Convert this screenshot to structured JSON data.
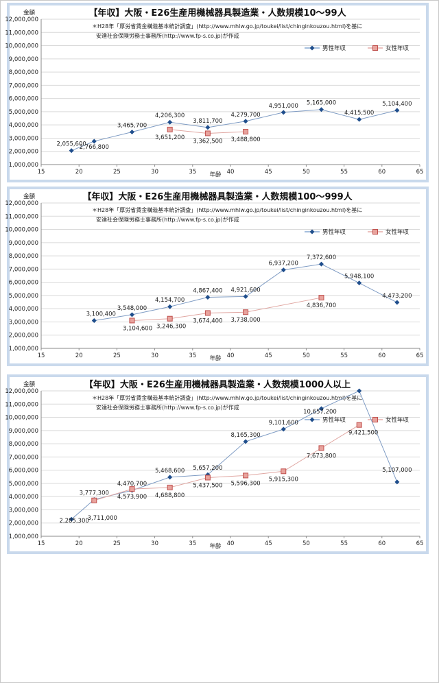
{
  "chart_data": [
    {
      "type": "line",
      "title": "【年収】大阪・E26生産用機械器具製造業・人数規模10～99人",
      "note_line1": "＊H28年「厚労省賃金構造基本統計調査」(http://www.mhlw.go.jp/toukei/list/chinginkouzou.html)を基に",
      "note_line2": "安達社会保険労務士事務所(http://www.fp-s.co.jp)が作成",
      "ylabel": "金額",
      "xlabel": "年齢",
      "xlim": [
        15,
        65
      ],
      "ylim": [
        1000000,
        12000000
      ],
      "x_ticks": [
        "15",
        "20",
        "25",
        "30",
        "35",
        "40",
        "45",
        "50",
        "55",
        "60",
        "65"
      ],
      "y_ticks": [
        "1,000,000",
        "2,000,000",
        "3,000,000",
        "4,000,000",
        "5,000,000",
        "6,000,000",
        "7,000,000",
        "8,000,000",
        "9,000,000",
        "10,000,000",
        "11,000,000",
        "12,000,000"
      ],
      "legend_position": "top-right",
      "grid": true,
      "series": [
        {
          "name": "男性年収",
          "color": "#4a7ebb",
          "marker": "diamond",
          "x": [
            19,
            22,
            27,
            32,
            37,
            42,
            47,
            52,
            57,
            62
          ],
          "y": [
            2055600,
            2766800,
            3465700,
            4206300,
            3811700,
            4279700,
            4951000,
            5165000,
            4415500,
            5104400
          ],
          "labels": [
            "2,055,600",
            "2,766,800",
            "3,465,700",
            "4,206,300",
            "3,811,700",
            "4,279,700",
            "4,951,000",
            "5,165,000",
            "4,415,500",
            "5,104,400"
          ]
        },
        {
          "name": "女性年収",
          "color": "#d9837c",
          "marker": "square",
          "x": [
            32,
            37,
            42
          ],
          "y": [
            3651200,
            3362500,
            3488800
          ],
          "labels": [
            "3,651,200",
            "3,362,500",
            "3,488,800"
          ]
        }
      ]
    },
    {
      "type": "line",
      "title": "【年収】大阪・E26生産用機械器具製造業・人数規模100～999人",
      "note_line1": "＊H28年「厚労省賃金構造基本統計調査」(http://www.mhlw.go.jp/toukei/list/chinginkouzou.html)を基に",
      "note_line2": "安達社会保険労務士事務所(http://www.fp-s.co.jp)が作成",
      "ylabel": "金額",
      "xlabel": "年齢",
      "xlim": [
        15,
        65
      ],
      "ylim": [
        1000000,
        12000000
      ],
      "x_ticks": [
        "15",
        "20",
        "25",
        "30",
        "35",
        "40",
        "45",
        "50",
        "55",
        "60",
        "65"
      ],
      "y_ticks": [
        "1,000,000",
        "2,000,000",
        "3,000,000",
        "4,000,000",
        "5,000,000",
        "6,000,000",
        "7,000,000",
        "8,000,000",
        "9,000,000",
        "10,000,000",
        "11,000,000",
        "12,000,000"
      ],
      "legend_position": "top-right",
      "grid": true,
      "series": [
        {
          "name": "男性年収",
          "color": "#4a7ebb",
          "marker": "diamond",
          "x": [
            22,
            27,
            32,
            37,
            42,
            47,
            52,
            57,
            62
          ],
          "y": [
            3100400,
            3548000,
            4154700,
            4867400,
            4921600,
            6937200,
            7372600,
            5948100,
            4473200
          ],
          "labels": [
            "3,100,400",
            "3,548,000",
            "4,154,700",
            "4,867,400",
            "4,921,600",
            "6,937,200",
            "7,372,600",
            "5,948,100",
            "4,473,200"
          ]
        },
        {
          "name": "女性年収",
          "color": "#d9837c",
          "marker": "square",
          "x": [
            27,
            32,
            37,
            42,
            52
          ],
          "y": [
            3104600,
            3246300,
            3674400,
            3738000,
            4836700
          ],
          "labels": [
            "3,104,600",
            "3,246,300",
            "3,674,400",
            "3,738,000",
            "4,836,700"
          ]
        }
      ]
    },
    {
      "type": "line",
      "title": "【年収】大阪・E26生産用機械器具製造業・人数規模1000人以上",
      "note_line1": "＊H28年「厚労省賃金構造基本統計調査」(http://www.mhlw.go.jp/toukei/list/chinginkouzou.html)を基に",
      "note_line2": "安達社会保険労務士事務所(http://www.fp-s.co.jp)が作成",
      "ylabel": "金額",
      "xlabel": "年齢",
      "xlim": [
        15,
        65
      ],
      "ylim": [
        1000000,
        12000000
      ],
      "x_ticks": [
        "15",
        "20",
        "25",
        "30",
        "35",
        "40",
        "45",
        "50",
        "55",
        "60",
        "65"
      ],
      "y_ticks": [
        "1,000,000",
        "2,000,000",
        "3,000,000",
        "4,000,000",
        "5,000,000",
        "6,000,000",
        "7,000,000",
        "8,000,000",
        "9,000,000",
        "10,000,000",
        "11,000,000",
        "12,000,000"
      ],
      "legend_position": "top-right",
      "grid": true,
      "series": [
        {
          "name": "男性年収",
          "color": "#4a7ebb",
          "marker": "diamond",
          "x": [
            19,
            22,
            27,
            32,
            37,
            42,
            47,
            52,
            57,
            62
          ],
          "y": [
            2285300,
            3777300,
            4470700,
            5468600,
            5657200,
            8165300,
            9101600,
            10657200,
            12400000,
            5107000
          ],
          "labels": [
            "2,285,300",
            "3,777,300",
            "4,470,700",
            "5,468,600",
            "5,657,200",
            "8,165,300",
            "9,101,600",
            "10,657,200",
            "",
            "5,107,000"
          ]
        },
        {
          "name": "女性年収",
          "color": "#d9837c",
          "marker": "square",
          "x": [
            22,
            27,
            32,
            37,
            42,
            47,
            52,
            57
          ],
          "y": [
            3711000,
            4573900,
            4688800,
            5437500,
            5596300,
            5915300,
            7673800,
            9421500
          ],
          "labels": [
            "3,711,000",
            "4,573,900",
            "4,688,800",
            "5,437,500",
            "5,596,300",
            "5,915,300",
            "7,673,800",
            "9,421,500"
          ]
        }
      ]
    }
  ]
}
